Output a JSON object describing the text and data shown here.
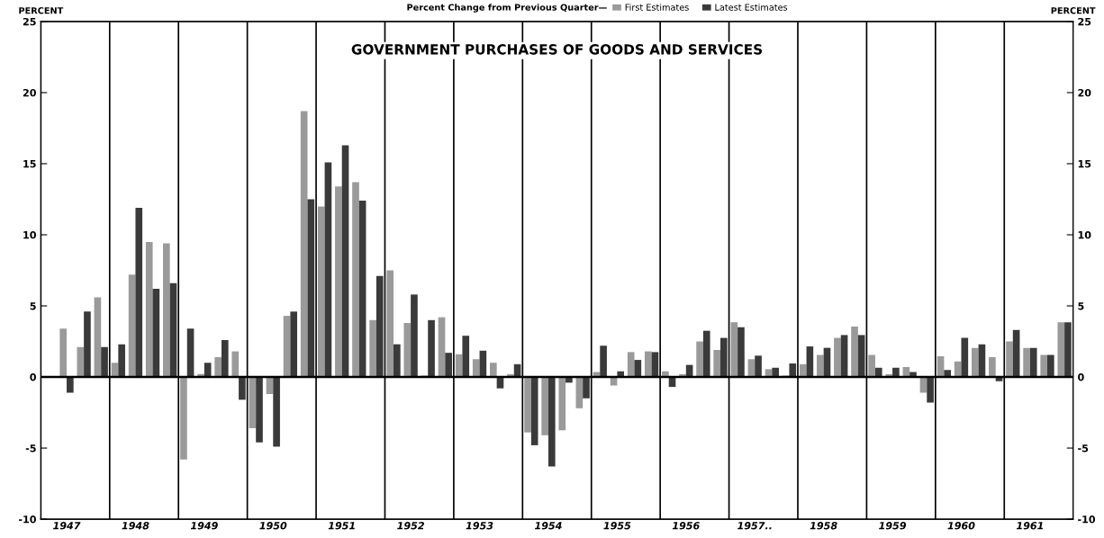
{
  "chart_data": {
    "type": "bar",
    "title": "GOVERNMENT PURCHASES OF GOODS AND SERVICES",
    "subtitle": "Percent Change from Previous Quarter—",
    "ylabel": "PERCENT",
    "y2label": "PERCENT",
    "categories": [
      null,
      "1947",
      null,
      null,
      null,
      "1948",
      null,
      null,
      null,
      "1949",
      null,
      null,
      null,
      "1950",
      null,
      null,
      null,
      "1951",
      null,
      null,
      null,
      "1952",
      null,
      null,
      null,
      "1953",
      null,
      null,
      null,
      "1954",
      null,
      null,
      null,
      "1955",
      null,
      null,
      null,
      "1956",
      null,
      null,
      null,
      "1957..",
      null,
      null,
      null,
      "1958",
      null,
      null,
      null,
      "1959",
      null,
      null,
      null,
      "1960",
      null,
      null,
      null,
      "1961",
      null,
      null
    ],
    "series": [
      {
        "name": "First Estimates",
        "color": "#9a9a9a",
        "values": [
          null,
          3.4,
          2.1,
          5.6,
          1.0,
          7.2,
          9.5,
          9.4,
          -5.8,
          0.2,
          1.4,
          1.8,
          -3.6,
          -1.2,
          4.3,
          18.7,
          12.0,
          13.4,
          13.7,
          4.0,
          7.5,
          3.8,
          0.1,
          4.2,
          1.6,
          1.25,
          1.0,
          0.2,
          -3.9,
          -4.1,
          -3.75,
          -2.2,
          0.35,
          -0.6,
          1.75,
          1.8,
          0.4,
          0.2,
          2.5,
          1.9,
          3.85,
          1.25,
          0.55,
          0.1,
          0.9,
          1.55,
          2.75,
          3.55,
          1.55,
          0.2,
          0.7,
          -1.1,
          1.45,
          1.1,
          2.05,
          1.4,
          2.5,
          2.05,
          1.55,
          3.85
        ]
      },
      {
        "name": "Latest Estimates",
        "color": "#3a3a3a",
        "values": [
          null,
          -1.1,
          4.6,
          2.1,
          2.3,
          11.9,
          6.2,
          6.6,
          3.4,
          1.0,
          2.6,
          -1.6,
          -4.6,
          -4.9,
          4.6,
          12.5,
          15.1,
          16.3,
          12.4,
          7.1,
          2.3,
          5.8,
          4.0,
          1.7,
          2.9,
          1.85,
          -0.8,
          0.9,
          -4.8,
          -6.3,
          -0.4,
          -1.5,
          2.2,
          0.4,
          1.2,
          1.75,
          -0.7,
          0.85,
          3.25,
          2.75,
          3.5,
          1.5,
          0.65,
          0.95,
          2.15,
          2.05,
          2.95,
          2.95,
          0.65,
          0.65,
          0.35,
          -1.8,
          0.5,
          2.75,
          2.3,
          -0.3,
          3.3,
          2.05,
          1.55,
          3.85
        ]
      }
    ],
    "ylim": [
      -10,
      25
    ],
    "yticks": [
      -10,
      -5,
      0,
      5,
      10,
      15,
      20,
      25
    ],
    "y2lim": [
      -10,
      25
    ],
    "y2ticks": [
      -10,
      -5,
      0,
      5,
      10,
      15,
      20,
      25
    ],
    "ref_lines": [
      {
        "axis": "y",
        "value": 0
      }
    ],
    "grid": "x",
    "legend": "top"
  }
}
